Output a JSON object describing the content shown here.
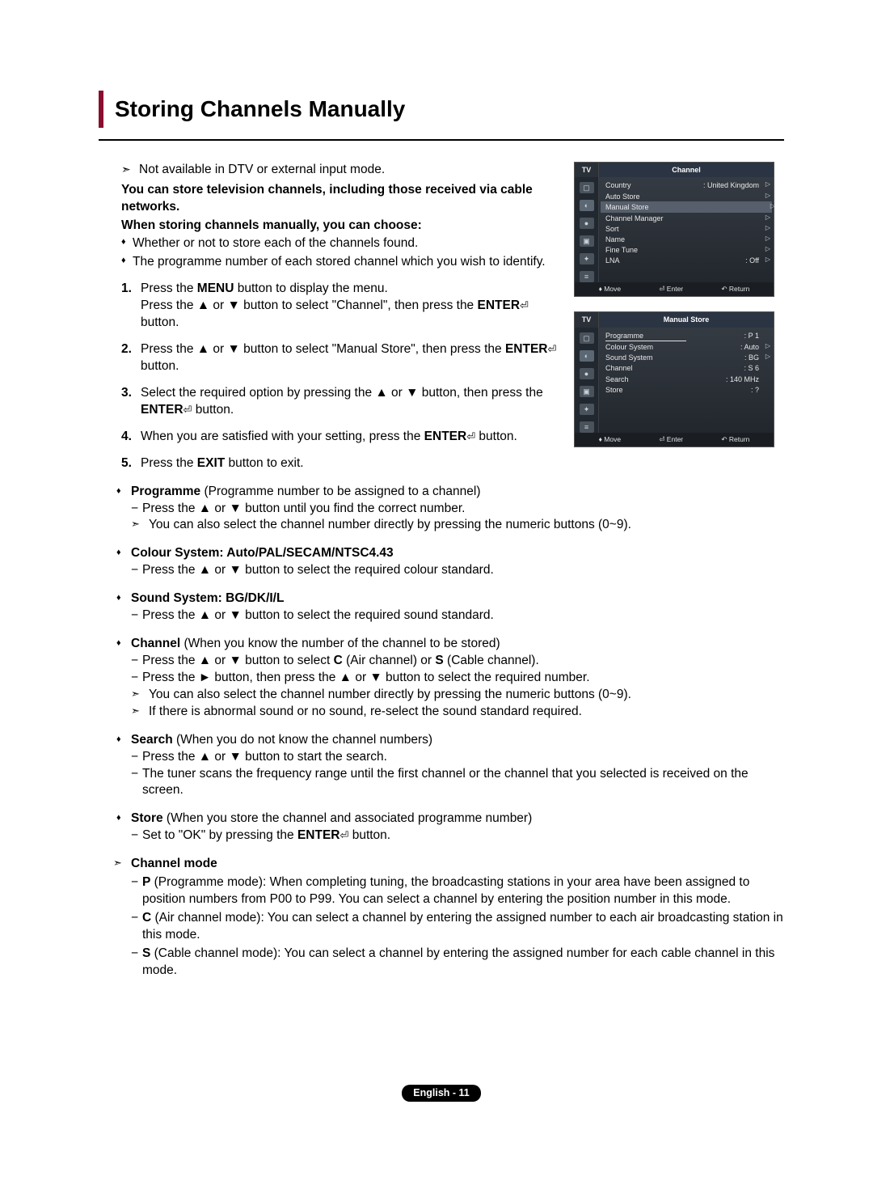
{
  "title": "Storing Channels Manually",
  "note_top": "Not available in DTV or external input mode.",
  "intro1": "You can store television channels, including those received via cable networks.",
  "intro2": "When storing channels manually, you can choose:",
  "intro_bullets": [
    "Whether or not to store each of the channels found.",
    "The programme number of each stored channel which you wish to identify."
  ],
  "steps": [
    {
      "n": "1.",
      "t": "Press the <b>MENU</b> button to display the menu.<br>Press the ▲ or ▼ button to select \"Channel\", then press the <b>ENTER</b><span class='enter-icon'>⏎</span> button."
    },
    {
      "n": "2.",
      "t": "Press the ▲ or ▼ button to select \"Manual Store\", then press the <b>ENTER</b><span class='enter-icon'>⏎</span> button."
    },
    {
      "n": "3.",
      "t": "Select the required option by pressing the ▲ or ▼ button, then press the <b>ENTER</b><span class='enter-icon'>⏎</span> button."
    },
    {
      "n": "4.",
      "t": "When you are satisfied with your setting, press the <b>ENTER</b><span class='enter-icon'>⏎</span> button."
    },
    {
      "n": "5.",
      "t": "Press the <b>EXIT</b> button to exit."
    }
  ],
  "details": [
    {
      "head": "<b>Programme</b> (Programme number to be assigned to a channel)",
      "subs": [
        {
          "type": "dash",
          "t": "Press the ▲ or ▼ button until you find the correct number."
        },
        {
          "type": "note",
          "t": "You can also select the channel number directly by pressing the numeric buttons (0~9)."
        }
      ]
    },
    {
      "head": "<b>Colour System: Auto/PAL/SECAM/NTSC4.43</b>",
      "subs": [
        {
          "type": "dash",
          "t": "Press the ▲ or ▼ button to select the required colour standard."
        }
      ]
    },
    {
      "head": "<b>Sound System: BG/DK/I/L</b>",
      "subs": [
        {
          "type": "dash",
          "t": "Press the ▲ or ▼ button to select the required sound standard."
        }
      ]
    },
    {
      "head": "<b>Channel</b> (When you know the number of the channel to be stored)",
      "subs": [
        {
          "type": "dash",
          "t": "Press the ▲ or ▼ button to select <b>C</b> (Air channel) or <b>S</b> (Cable channel)."
        },
        {
          "type": "dash",
          "t": "Press the ► button, then press the ▲ or ▼ button to select the required number."
        },
        {
          "type": "note",
          "t": "You can also select the channel number directly by pressing the numeric buttons (0~9)."
        },
        {
          "type": "note",
          "t": "If there is abnormal sound or no sound, re-select the sound standard required."
        }
      ]
    },
    {
      "head": "<b>Search</b> (When you do not know the channel numbers)",
      "subs": [
        {
          "type": "dash",
          "t": "Press the ▲ or ▼ button to start the search."
        },
        {
          "type": "dash",
          "t": "The tuner scans the frequency range until the first channel or the channel that you selected is received on the screen."
        }
      ]
    },
    {
      "head": "<b>Store</b> (When you store the channel and associated programme number)",
      "subs": [
        {
          "type": "dash",
          "t": "Set to \"OK\" by pressing the <b>ENTER</b><span class='enter-icon'>⏎</span> button."
        }
      ]
    }
  ],
  "channel_mode": {
    "head": "Channel mode",
    "items": [
      "<b>P</b> (Programme mode): When completing tuning, the broadcasting stations in your area have been assigned to position numbers from P00 to P99. You can select a channel by entering the position number in this mode.",
      "<b>C</b> (Air channel mode): You can select a channel by entering the assigned number to each air broadcasting station in this mode.",
      "<b>S</b> (Cable channel mode): You can select a channel by entering the assigned number for each cable channel in this mode."
    ]
  },
  "osd1": {
    "tv": "TV",
    "title": "Channel",
    "rows": [
      {
        "l": "Country",
        "v": ": United Kingdom",
        "a": true
      },
      {
        "l": "Auto Store",
        "v": "",
        "a": true
      },
      {
        "l": "Manual Store",
        "v": "",
        "a": true,
        "hl": true
      },
      {
        "l": "Channel Manager",
        "v": "",
        "a": true
      },
      {
        "l": "Sort",
        "v": "",
        "a": true
      },
      {
        "l": "Name",
        "v": "",
        "a": true
      },
      {
        "l": "Fine Tune",
        "v": "",
        "a": true
      },
      {
        "l": "LNA",
        "v": ": Off",
        "a": true
      }
    ],
    "footer": {
      "move": "Move",
      "enter": "Enter",
      "return": "Return"
    }
  },
  "osd2": {
    "tv": "TV",
    "title": "Manual Store",
    "rows": [
      {
        "l": "Programme",
        "v": ": P 1",
        "a": false,
        "underline": true
      },
      {
        "l": "Colour System",
        "v": ": Auto",
        "a": true
      },
      {
        "l": "Sound System",
        "v": ": BG",
        "a": true
      },
      {
        "l": "Channel",
        "v": ": S 6",
        "a": false
      },
      {
        "l": "Search",
        "v": ": 140 MHz",
        "a": false
      },
      {
        "l": "Store",
        "v": ": ?",
        "a": false
      }
    ],
    "footer": {
      "move": "Move",
      "enter": "Enter",
      "return": "Return"
    }
  },
  "page_num": "English - 11"
}
